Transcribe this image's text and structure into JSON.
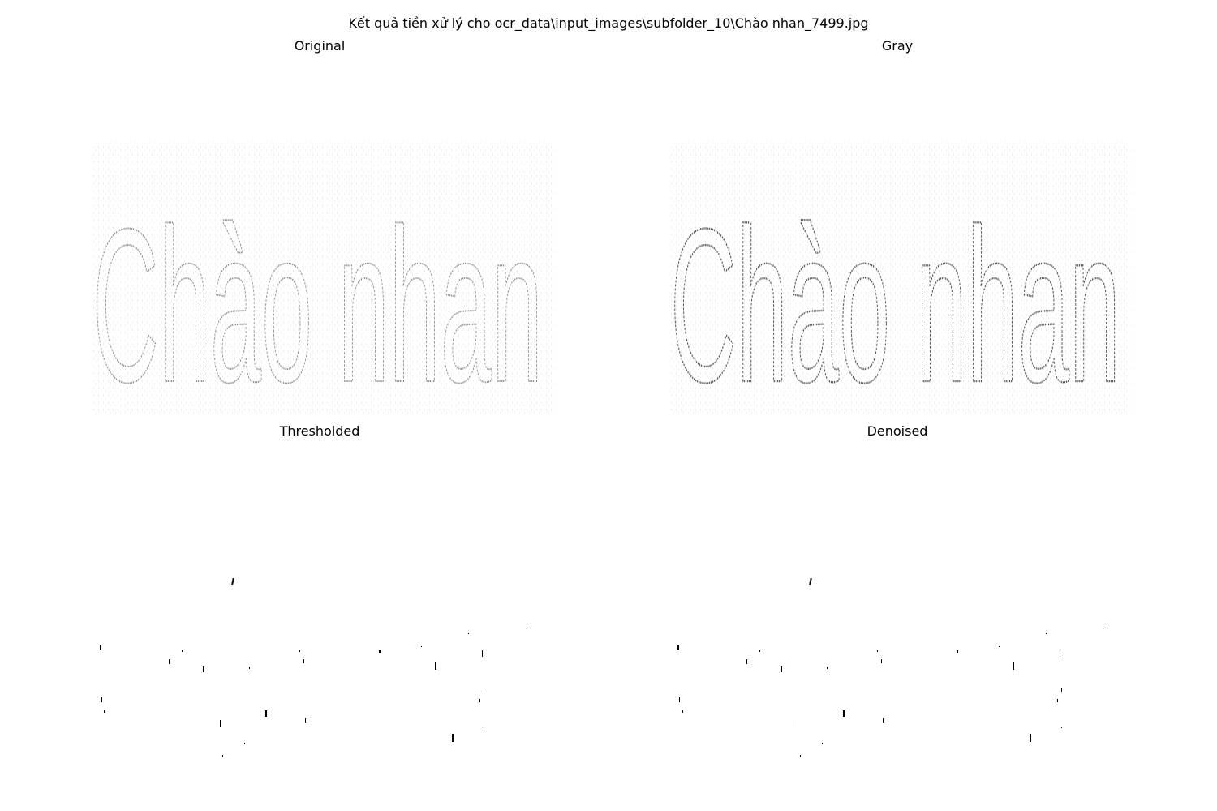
{
  "figure": {
    "title": "Kết quả tiền xử lý cho ocr_data\\input_images\\subfolder_10\\Chào nhan_7499.jpg"
  },
  "panels": [
    {
      "id": "original",
      "title": "Original",
      "depicted_text": "Chào nhan"
    },
    {
      "id": "gray",
      "title": "Gray",
      "depicted_text": "Chào nhan"
    },
    {
      "id": "thresholded",
      "title": "Thresholded"
    },
    {
      "id": "denoised",
      "title": "Denoised"
    }
  ]
}
